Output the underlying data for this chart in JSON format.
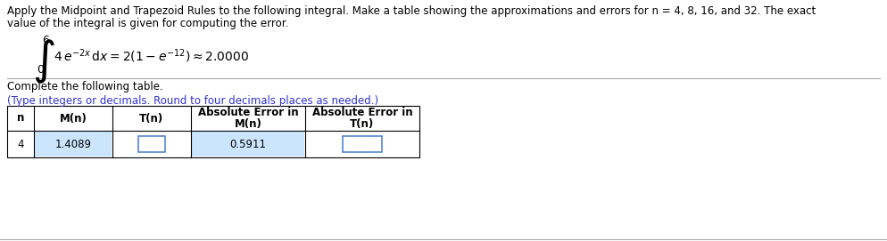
{
  "title_line1": "Apply the Midpoint and Trapezoid Rules to the following integral. Make a table showing the approximations and errors for n = 4, 8, 16, and 32. The exact",
  "title_line2": "value of the integral is given for computing the error.",
  "complete_text": "Complete the following table.",
  "hint_text": "(Type integers or decimals. Round to four decimals places as needed.)",
  "hint_color": "#3333cc",
  "col_headers": [
    "n",
    "M(n)",
    "T(n)",
    "Absolute Error in\nM(n)",
    "Absolute Error in\nT(n)"
  ],
  "row_n": "4",
  "row_mn": "1.4089",
  "row_tn": "",
  "row_abs_mn": "0.5911",
  "row_abs_tn": "",
  "filled_bg": "#cce5ff",
  "empty_box_border": "#5588cc",
  "table_border_color": "#000000",
  "bg_color": "#ffffff",
  "text_color": "#000000",
  "sep_line_color": "#aaaaaa",
  "fs": 8.5,
  "integral_upper": "6",
  "integral_lower": "0"
}
